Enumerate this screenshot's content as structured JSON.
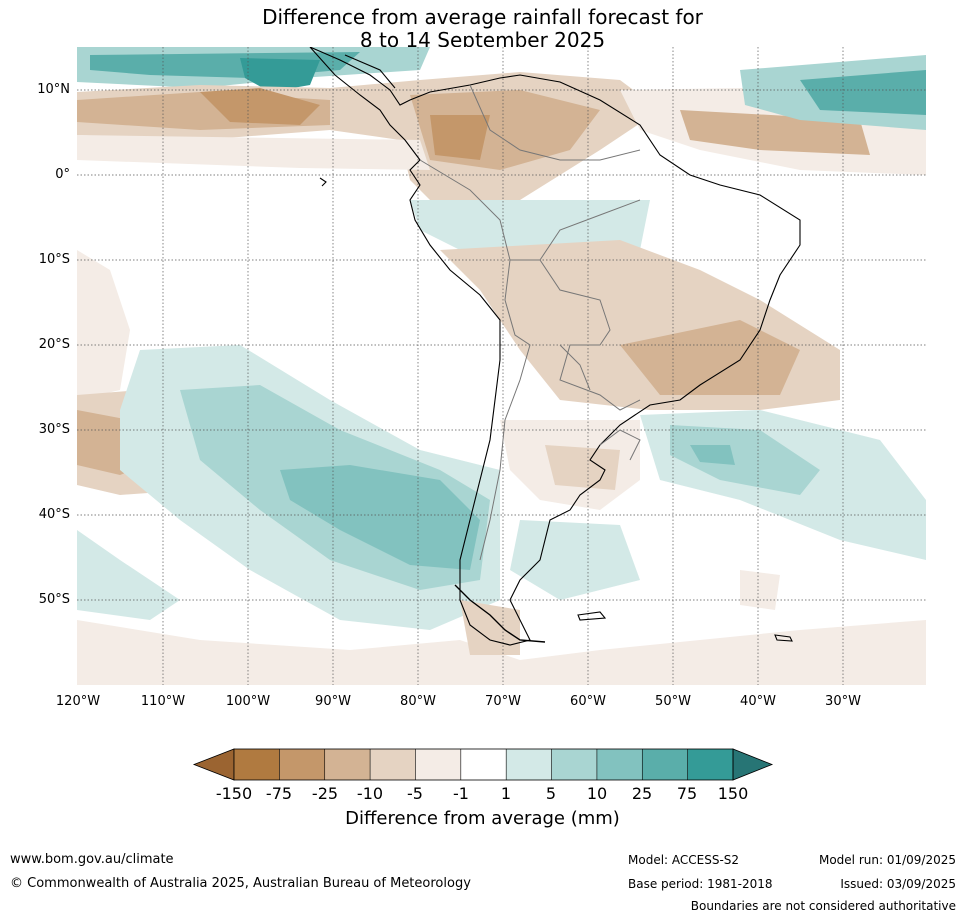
{
  "title": {
    "line1": "Difference from average rainfall forecast for",
    "line2": "8 to 14 September 2025"
  },
  "map": {
    "lat_labels": [
      "10°N",
      "0°",
      "10°S",
      "20°S",
      "30°S",
      "40°S",
      "50°S"
    ],
    "lon_labels": [
      "120°W",
      "110°W",
      "100°W",
      "90°W",
      "80°W",
      "70°W",
      "60°W",
      "50°W",
      "40°W",
      "30°W"
    ]
  },
  "legend": {
    "title": "Difference from average (mm)",
    "tick_labels": [
      "-150",
      "-75",
      "-25",
      "-10",
      "-5",
      "-1",
      "1",
      "5",
      "10",
      "25",
      "75",
      "150"
    ],
    "colors": [
      "#9b6431",
      "#b07a40",
      "#c4976a",
      "#d3b394",
      "#e5d3c2",
      "#f4ece6",
      "#ffffff",
      "#d3e9e7",
      "#a9d5d2",
      "#82c2bf",
      "#5aaeaa",
      "#349b97",
      "#277575"
    ]
  },
  "footer": {
    "website": "www.bom.gov.au/climate",
    "copyright": "© Commonwealth of Australia 2025, Australian Bureau of Meteorology",
    "model": "Model: ACCESS-S2",
    "base_period": "Base period: 1981-2018",
    "model_run": "Model run: 01/09/2025",
    "issued": "Issued: 03/09/2025",
    "disclaimer": "Boundaries are not considered authoritative"
  }
}
